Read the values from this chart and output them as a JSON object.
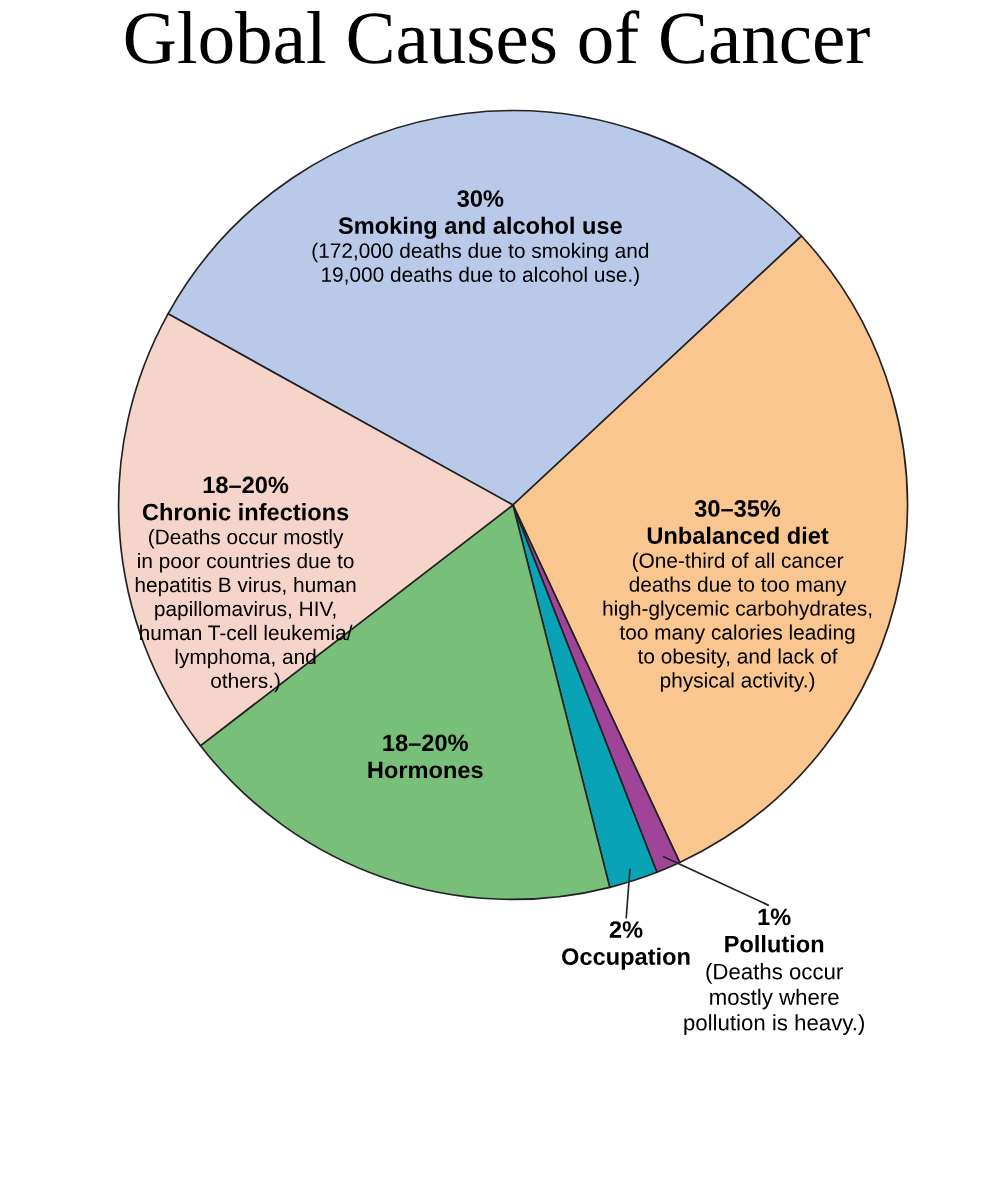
{
  "chart_data": {
    "type": "pie",
    "title": "Global Causes of Cancer",
    "categories": [
      "Smoking and alcohol use",
      "Unbalanced diet",
      "Pollution",
      "Occupation",
      "Hormones",
      "Chronic infections"
    ],
    "values": [
      30,
      30,
      1,
      2,
      18.5,
      18.5
    ],
    "value_labels": [
      "30%",
      "30–35%",
      "1%",
      "2%",
      "18–20%",
      "18–20%"
    ],
    "colors": [
      "#b9c9e9",
      "#f9c68f",
      "#a0449a",
      "#0aa3b5",
      "#78bf7a",
      "#f7d4c9"
    ],
    "annotations": [
      {
        "text": "(172,000 deaths due to smoking and\n19,000 deaths due to alcohol use.)",
        "x": "Smoking and alcohol use"
      },
      {
        "text": "(One-third of all cancer\ndeaths due to too many\nhigh-glycemic carbohydrates,\ntoo many calories leading\nto obesity, and lack of\nphysical activity.)",
        "x": "Unbalanced diet"
      },
      {
        "text": "(Deaths occur\nmostly where\npollution is heavy.)",
        "x": "Pollution"
      },
      {
        "text": "(Deaths occur mostly\nin poor countries due to\nhepatitis B virus, human\npapillomavirus, HIV,\nhuman T-cell leukemia/\nlymphoma, and\nothers.)",
        "x": "Chronic infections"
      }
    ]
  }
}
